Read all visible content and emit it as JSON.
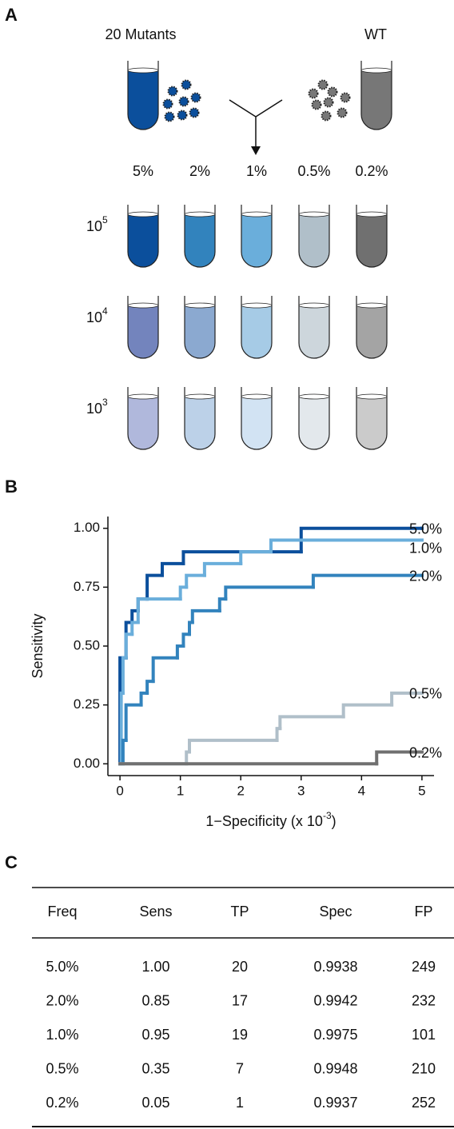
{
  "panel_a": {
    "label": "A",
    "mutants_label": "20 Mutants",
    "wt_label": "WT",
    "mutants_color": "#0b4f9c",
    "wt_color": "#777777",
    "frequencies": [
      "5%",
      "2%",
      "1%",
      "0.5%",
      "0.2%"
    ],
    "dilutions": [
      {
        "base": "10",
        "exp": "5"
      },
      {
        "base": "10",
        "exp": "4"
      },
      {
        "base": "10",
        "exp": "3"
      }
    ],
    "tube_colors": [
      [
        "#0b4f9c",
        "#3283bd",
        "#6aaedb",
        "#b0bfc9",
        "#707070"
      ],
      [
        "#7384bd",
        "#8ba9d0",
        "#a6cbe6",
        "#cdd6dc",
        "#a4a4a4"
      ],
      [
        "#b0b8dc",
        "#bcd1e8",
        "#d2e3f3",
        "#e3e8ec",
        "#cbcbcb"
      ]
    ]
  },
  "chart_data": {
    "label": "B",
    "type": "line",
    "step": true,
    "ylabel": "Sensitivity",
    "xlabel": {
      "text": "1−Specificity (x 10",
      "sup": "-3",
      "end": ")"
    },
    "xlim": [
      -0.2,
      5.2
    ],
    "ylim": [
      -0.05,
      1.05
    ],
    "xticks": [
      0,
      1,
      2,
      3,
      4,
      5
    ],
    "yticks": [
      {
        "value": 0,
        "label": "0.00"
      },
      {
        "value": 0.25,
        "label": "0.25"
      },
      {
        "value": 0.5,
        "label": "0.50"
      },
      {
        "value": 0.75,
        "label": "0.75"
      },
      {
        "value": 1,
        "label": "1.00"
      }
    ],
    "series": [
      {
        "name": "5.0%",
        "color": "#0b4f9c",
        "x": [
          0,
          0,
          0.1,
          0.2,
          0.3,
          0.45,
          0.7,
          1.05,
          3.0,
          5
        ],
        "values": [
          0,
          0.45,
          0.6,
          0.65,
          0.7,
          0.8,
          0.85,
          0.9,
          1.0,
          1.0
        ]
      },
      {
        "name": "1.0%",
        "color": "#6aaedb",
        "x": [
          0,
          0.02,
          0.05,
          0.1,
          0.2,
          0.3,
          1.0,
          1.1,
          1.4,
          2.0,
          2.5,
          5
        ],
        "values": [
          0,
          0.3,
          0.45,
          0.55,
          0.6,
          0.7,
          0.75,
          0.8,
          0.85,
          0.9,
          0.95,
          0.95
        ]
      },
      {
        "name": "2.0%",
        "color": "#3283bd",
        "x": [
          0,
          0.05,
          0.1,
          0.35,
          0.45,
          0.55,
          0.95,
          1.05,
          1.15,
          1.2,
          1.65,
          1.75,
          3.2,
          5
        ],
        "values": [
          0,
          0.1,
          0.25,
          0.3,
          0.35,
          0.45,
          0.5,
          0.55,
          0.6,
          0.65,
          0.7,
          0.75,
          0.8,
          0.8
        ]
      },
      {
        "name": "0.5%",
        "color": "#b0bfc9",
        "x": [
          0,
          1.1,
          1.15,
          2.6,
          2.65,
          3.7,
          4.5,
          5
        ],
        "values": [
          0,
          0.05,
          0.1,
          0.15,
          0.2,
          0.25,
          0.3,
          0.3
        ]
      },
      {
        "name": "0.2%",
        "color": "#707070",
        "x": [
          0,
          4.25,
          5
        ],
        "values": [
          0,
          0.05,
          0.05
        ]
      }
    ]
  },
  "table": {
    "label": "C",
    "header": [
      "Freq",
      "Sens",
      "TP",
      "Spec",
      "FP"
    ],
    "rows": [
      [
        "5.0%",
        "1.00",
        "20",
        "0.9938",
        "249"
      ],
      [
        "2.0%",
        "0.85",
        "17",
        "0.9942",
        "232"
      ],
      [
        "1.0%",
        "0.95",
        "19",
        "0.9975",
        "101"
      ],
      [
        "0.5%",
        "0.35",
        "7",
        "0.9948",
        "210"
      ],
      [
        "0.2%",
        "0.05",
        "1",
        "0.9937",
        "252"
      ]
    ]
  }
}
